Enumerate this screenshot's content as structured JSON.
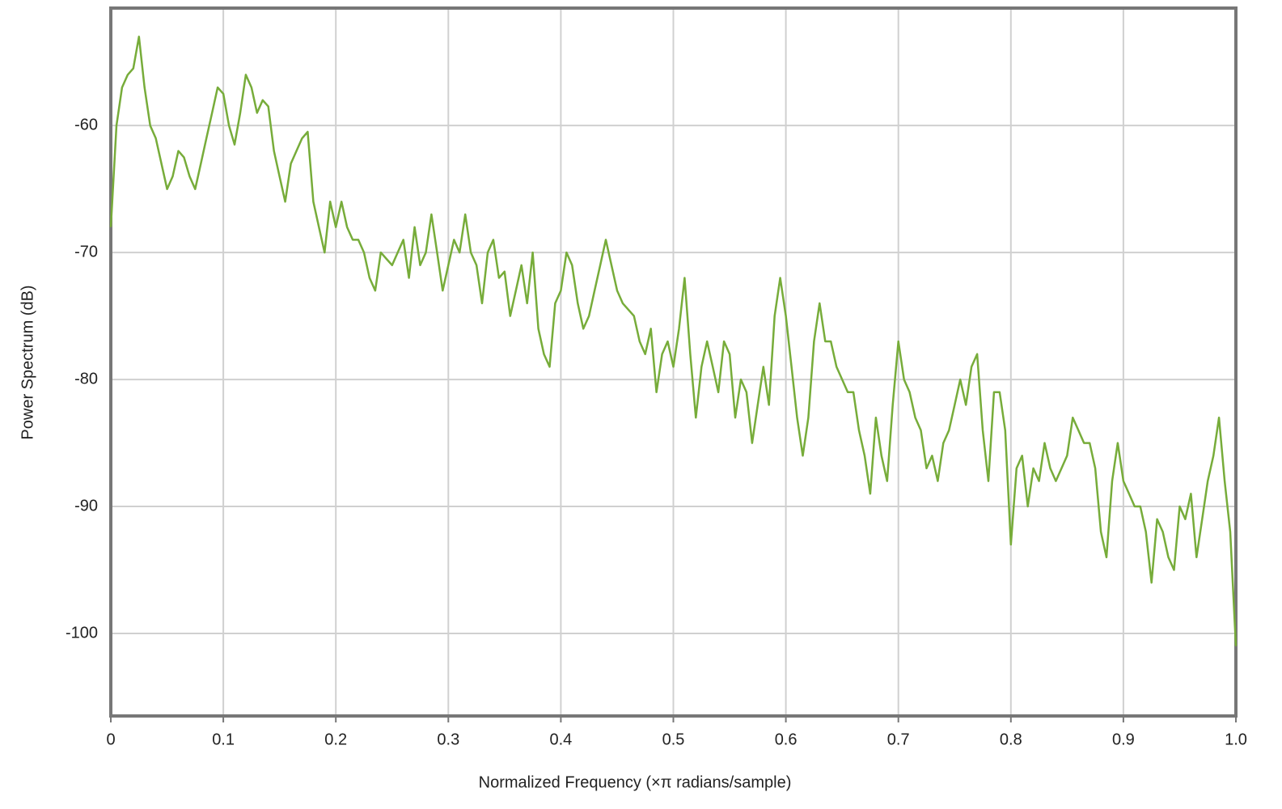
{
  "chart_data": {
    "type": "line",
    "xlabel": "Normalized Frequency (×π radians/sample)",
    "ylabel": "Power Spectrum (dB)",
    "xlim": [
      0,
      1
    ],
    "ylim": [
      -106.5,
      -50.75
    ],
    "xticks": [
      0,
      0.1,
      0.2,
      0.3,
      0.4,
      0.5,
      0.6,
      0.7,
      0.8,
      0.9,
      {
        "value": 1,
        "label": "1.0"
      }
    ],
    "yticks": [
      -60,
      -70,
      -80,
      -90,
      -100
    ],
    "grid": true,
    "x": [
      0,
      0.005,
      0.01,
      0.015,
      0.02,
      0.025,
      0.03,
      0.035,
      0.04,
      0.045,
      0.05,
      0.055,
      0.06,
      0.065,
      0.07,
      0.075,
      0.08,
      0.085,
      0.09,
      0.095,
      0.1,
      0.105,
      0.11,
      0.115,
      0.12,
      0.125,
      0.13,
      0.135,
      0.14,
      0.145,
      0.15,
      0.155,
      0.16,
      0.165,
      0.17,
      0.175,
      0.18,
      0.185,
      0.19,
      0.195,
      0.2,
      0.205,
      0.21,
      0.215,
      0.22,
      0.225,
      0.23,
      0.235,
      0.24,
      0.245,
      0.25,
      0.255,
      0.26,
      0.265,
      0.27,
      0.275,
      0.28,
      0.285,
      0.29,
      0.295,
      0.3,
      0.305,
      0.31,
      0.315,
      0.32,
      0.325,
      0.33,
      0.335,
      0.34,
      0.345,
      0.35,
      0.355,
      0.36,
      0.365,
      0.37,
      0.375,
      0.38,
      0.385,
      0.39,
      0.395,
      0.4,
      0.405,
      0.41,
      0.415,
      0.42,
      0.425,
      0.43,
      0.435,
      0.44,
      0.445,
      0.45,
      0.455,
      0.46,
      0.465,
      0.47,
      0.475,
      0.48,
      0.485,
      0.49,
      0.495,
      0.5,
      0.505,
      0.51,
      0.515,
      0.52,
      0.525,
      0.53,
      0.535,
      0.54,
      0.545,
      0.55,
      0.555,
      0.56,
      0.565,
      0.57,
      0.575,
      0.58,
      0.585,
      0.59,
      0.595,
      0.6,
      0.605,
      0.61,
      0.615,
      0.62,
      0.625,
      0.63,
      0.635,
      0.64,
      0.645,
      0.65,
      0.655,
      0.66,
      0.665,
      0.67,
      0.675,
      0.68,
      0.685,
      0.69,
      0.695,
      0.7,
      0.705,
      0.71,
      0.715,
      0.72,
      0.725,
      0.73,
      0.735,
      0.74,
      0.745,
      0.75,
      0.755,
      0.76,
      0.765,
      0.77,
      0.775,
      0.78,
      0.785,
      0.79,
      0.795,
      0.8,
      0.805,
      0.81,
      0.815,
      0.82,
      0.825,
      0.83,
      0.835,
      0.84,
      0.845,
      0.85,
      0.855,
      0.86,
      0.865,
      0.87,
      0.875,
      0.88,
      0.885,
      0.89,
      0.895,
      0.9,
      0.905,
      0.91,
      0.915,
      0.92,
      0.925,
      0.93,
      0.935,
      0.94,
      0.945,
      0.95,
      0.955,
      0.96,
      0.965,
      0.97,
      0.975,
      0.98,
      0.985,
      0.99,
      0.995,
      1
    ],
    "series": [
      {
        "color": "#77ac3a",
        "values": [
          -68,
          -60,
          -57,
          -56,
          -55.5,
          -53,
          -57,
          -60,
          -61,
          -63,
          -65,
          -64,
          -62,
          -62.5,
          -64,
          -65,
          -63,
          -61,
          -59,
          -57,
          -57.5,
          -60,
          -61.5,
          -59,
          -56,
          -57,
          -59,
          -58,
          -58.5,
          -62,
          -64,
          -66,
          -63,
          -62,
          -61,
          -60.5,
          -66,
          -68,
          -70,
          -66,
          -68,
          -66,
          -68,
          -69,
          -69,
          -70,
          -72,
          -73,
          -70,
          -70.5,
          -71,
          -70,
          -69,
          -72,
          -68,
          -71,
          -70,
          -67,
          -70,
          -73,
          -71,
          -69,
          -70,
          -67,
          -70,
          -71,
          -74,
          -70,
          -69,
          -72,
          -71.5,
          -75,
          -73,
          -71,
          -74,
          -70,
          -76,
          -78,
          -79,
          -74,
          -73,
          -70,
          -71,
          -74,
          -76,
          -75,
          -73,
          -71,
          -69,
          -71,
          -73,
          -74,
          -74.5,
          -75,
          -77,
          -78,
          -76,
          -81,
          -78,
          -77,
          -79,
          -76,
          -72,
          -78,
          -83,
          -79,
          -77,
          -79,
          -81,
          -77,
          -78,
          -83,
          -80,
          -81,
          -85,
          -82,
          -79,
          -82,
          -75,
          -72,
          -75,
          -79,
          -83,
          -86,
          -83,
          -77,
          -74,
          -77,
          -77,
          -79,
          -80,
          -81,
          -81,
          -84,
          -86,
          -89,
          -83,
          -86,
          -88,
          -82,
          -77,
          -80,
          -81,
          -83,
          -84,
          -87,
          -86,
          -88,
          -85,
          -84,
          -82,
          -80,
          -82,
          -79,
          -78,
          -84,
          -88,
          -81,
          -81,
          -84,
          -93,
          -87,
          -86,
          -90,
          -87,
          -88,
          -85,
          -87,
          -88,
          -87,
          -86,
          -83,
          -84,
          -85,
          -85,
          -87,
          -92,
          -94,
          -88,
          -85,
          -88,
          -89,
          -90,
          -90,
          -92,
          -96,
          -91,
          -92,
          -94,
          -95,
          -90,
          -91,
          -89,
          -94,
          -91,
          -88,
          -86,
          -83,
          -88,
          -92,
          -101
        ]
      }
    ]
  }
}
